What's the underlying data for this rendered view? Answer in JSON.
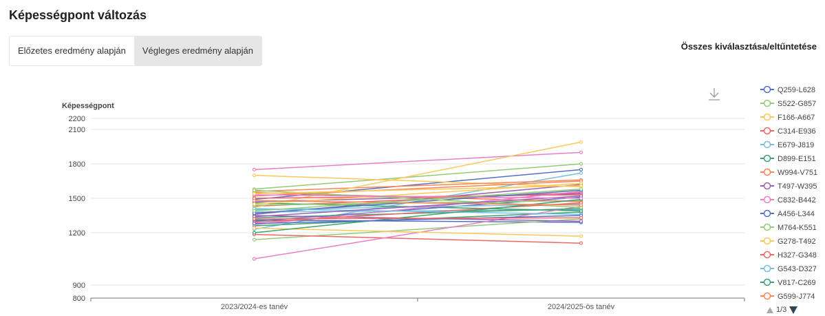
{
  "page": {
    "title": "Képességpont változás",
    "select_all": "Összes kiválasztása/eltűntetése"
  },
  "tabs": [
    {
      "label": "Előzetes eredmény alapján",
      "active": false
    },
    {
      "label": "Végleges eredmény alapján",
      "active": true
    }
  ],
  "icons": {
    "download": "download-icon"
  },
  "pager": {
    "label": "1/3"
  },
  "chart_data": {
    "type": "line",
    "ylabel": "Képességpont",
    "categories": [
      "2023/2024-es tanév",
      "2024/2025-ös tanév"
    ],
    "yticks": [
      800,
      900,
      1200,
      1500,
      1800,
      2100,
      2200
    ],
    "ylim": [
      800,
      2200
    ],
    "grid": true,
    "legend_position": "right",
    "legend_page": "1/3",
    "series": [
      {
        "name": "Q259-L628",
        "color": "#5470c6",
        "values": [
          1490,
          1750
        ]
      },
      {
        "name": "S522-G857",
        "color": "#91cc75",
        "values": [
          1580,
          1800
        ]
      },
      {
        "name": "F166-A667",
        "color": "#fac858",
        "values": [
          1700,
          1600
        ]
      },
      {
        "name": "C314-E936",
        "color": "#ee6666",
        "values": [
          1430,
          1550
        ]
      },
      {
        "name": "E679-J819",
        "color": "#73c0de",
        "values": [
          1230,
          1720
        ]
      },
      {
        "name": "D899-E151",
        "color": "#3ba272",
        "values": [
          1260,
          1380
        ]
      },
      {
        "name": "W994-V751",
        "color": "#fc8452",
        "values": [
          1560,
          1660
        ]
      },
      {
        "name": "T497-W395",
        "color": "#9a60b4",
        "values": [
          1360,
          1620
        ]
      },
      {
        "name": "C832-B442",
        "color": "#ea7ccc",
        "values": [
          1750,
          1900
        ]
      },
      {
        "name": "A456-L344",
        "color": "#5470c6",
        "values": [
          1310,
          1290
        ]
      },
      {
        "name": "M764-K551",
        "color": "#91cc75",
        "values": [
          1160,
          1320
        ]
      },
      {
        "name": "G278-T492",
        "color": "#fac858",
        "values": [
          1420,
          1990
        ]
      },
      {
        "name": "H327-G348",
        "color": "#ee6666",
        "values": [
          1190,
          1140
        ]
      },
      {
        "name": "G543-D327",
        "color": "#73c0de",
        "values": [
          1380,
          1400
        ]
      },
      {
        "name": "V817-C269",
        "color": "#3ba272",
        "values": [
          1460,
          1390
        ]
      },
      {
        "name": "G599-J774",
        "color": "#fc8452",
        "values": [
          1520,
          1650
        ]
      },
      {
        "name": "",
        "color": "#9a60b4",
        "values": [
          1470,
          1540
        ]
      },
      {
        "name": "",
        "color": "#ea7ccc",
        "values": [
          1050,
          1430
        ]
      },
      {
        "name": "",
        "color": "#5470c6",
        "values": [
          1300,
          1510
        ]
      },
      {
        "name": "",
        "color": "#91cc75",
        "values": [
          1440,
          1480
        ]
      },
      {
        "name": "",
        "color": "#fac858",
        "values": [
          1240,
          1180
        ]
      },
      {
        "name": "",
        "color": "#ee6666",
        "values": [
          1500,
          1530
        ]
      },
      {
        "name": "",
        "color": "#73c0de",
        "values": [
          1400,
          1450
        ]
      },
      {
        "name": "",
        "color": "#3ba272",
        "values": [
          1330,
          1410
        ]
      },
      {
        "name": "",
        "color": "#fc8452",
        "values": [
          1550,
          1470
        ]
      },
      {
        "name": "",
        "color": "#9a60b4",
        "values": [
          1350,
          1300
        ]
      },
      {
        "name": "",
        "color": "#ea7ccc",
        "values": [
          1270,
          1560
        ]
      },
      {
        "name": "",
        "color": "#5470c6",
        "values": [
          1370,
          1570
        ]
      },
      {
        "name": "",
        "color": "#91cc75",
        "values": [
          1570,
          1420
        ]
      },
      {
        "name": "",
        "color": "#fac858",
        "values": [
          1450,
          1630
        ]
      },
      {
        "name": "",
        "color": "#ee6666",
        "values": [
          1290,
          1460
        ]
      },
      {
        "name": "",
        "color": "#73c0de",
        "values": [
          1410,
          1360
        ]
      },
      {
        "name": "",
        "color": "#3ba272",
        "values": [
          1200,
          1490
        ]
      },
      {
        "name": "",
        "color": "#fc8452",
        "values": [
          1480,
          1440
        ]
      },
      {
        "name": "",
        "color": "#9a60b4",
        "values": [
          1340,
          1520
        ]
      },
      {
        "name": "",
        "color": "#ea7ccc",
        "values": [
          1530,
          1500
        ]
      },
      {
        "name": "",
        "color": "#5470c6",
        "values": [
          1280,
          1350
        ]
      },
      {
        "name": "",
        "color": "#91cc75",
        "values": [
          1390,
          1580
        ]
      },
      {
        "name": "",
        "color": "#fac858",
        "values": [
          1540,
          1610
        ]
      },
      {
        "name": "",
        "color": "#ee6666",
        "values": [
          1320,
          1330
        ]
      }
    ]
  }
}
